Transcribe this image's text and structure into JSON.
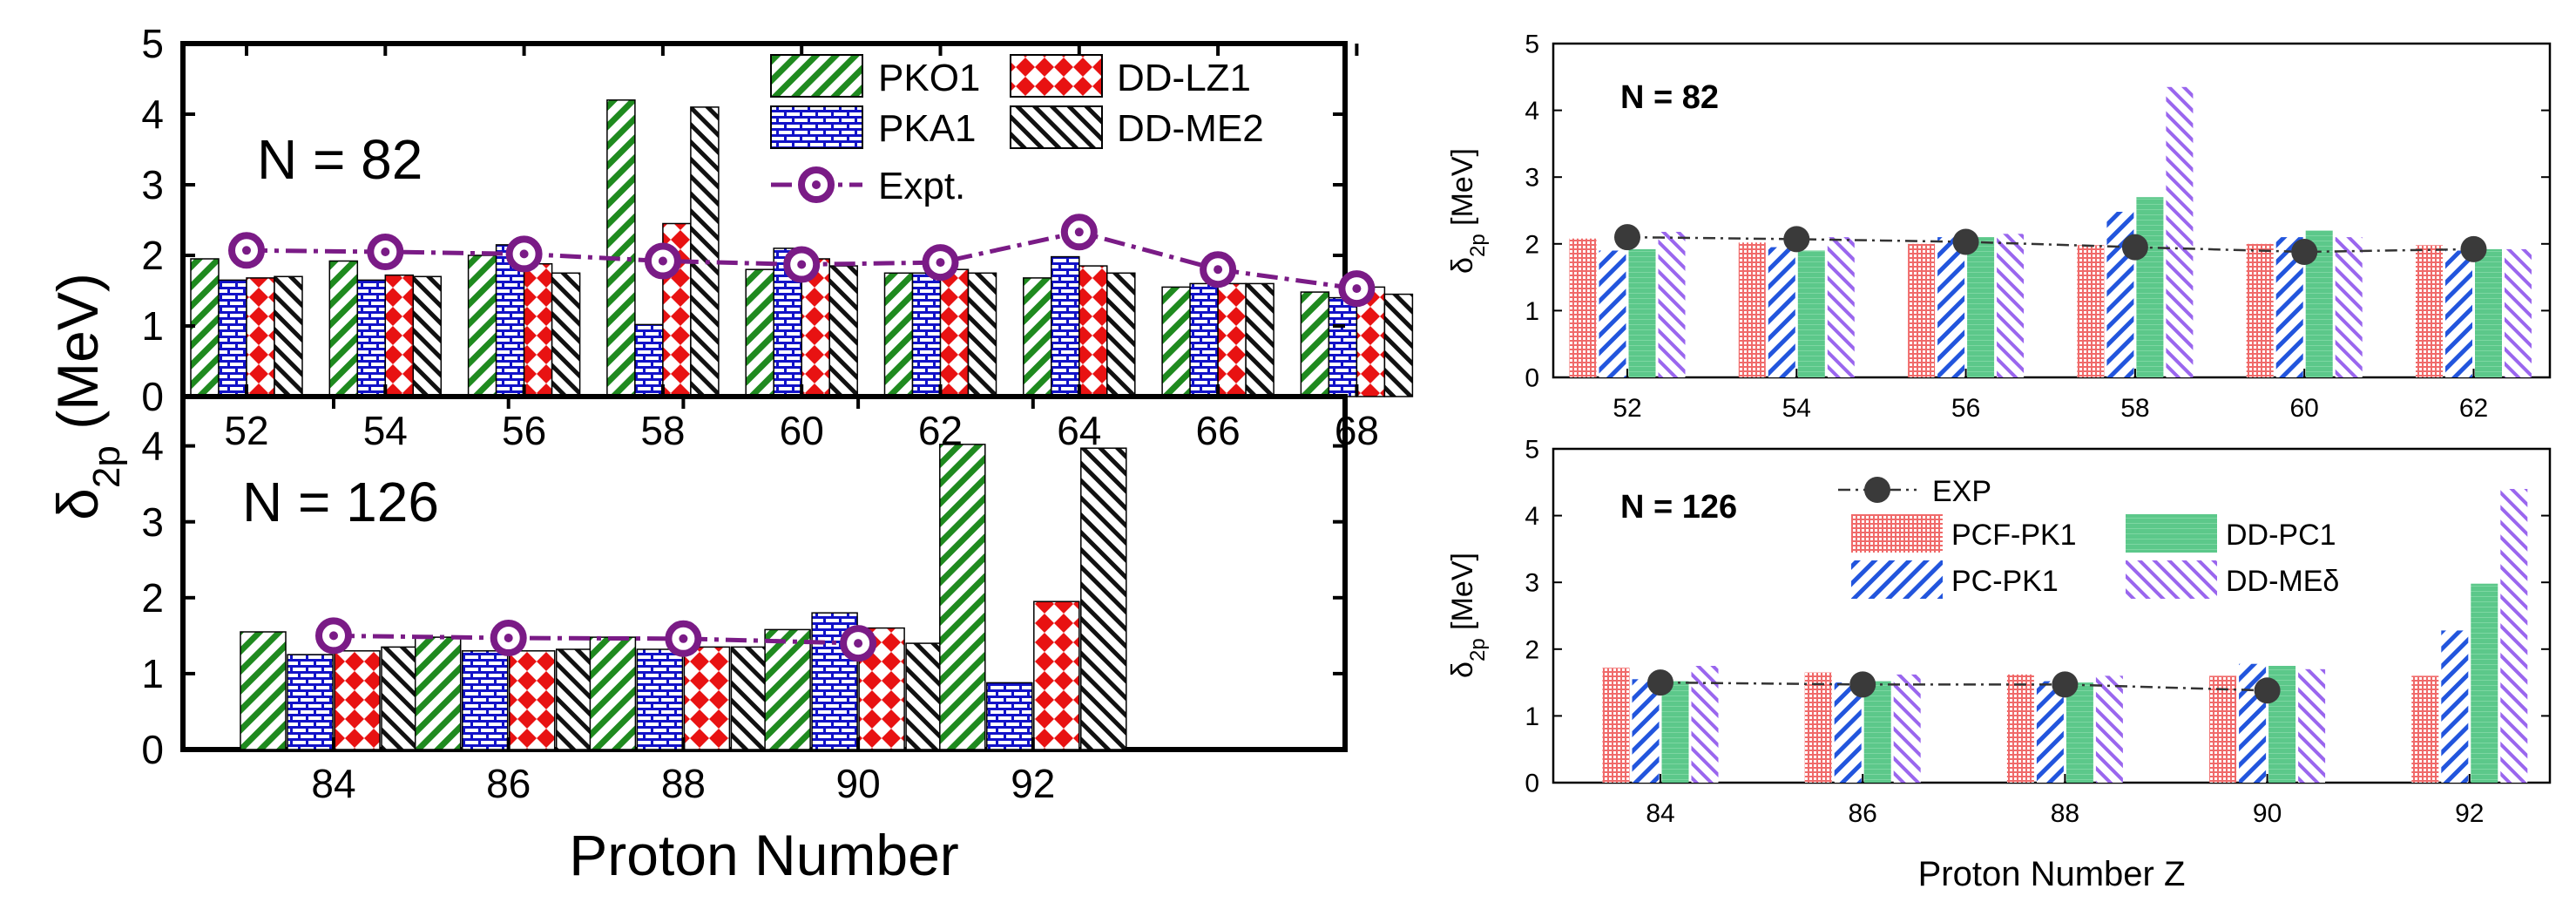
{
  "colors": {
    "pko1": "#1f8a1f",
    "pka1": "#1212c8",
    "ddlz1": "#e81212",
    "ddme2": "#111111",
    "expt": "#7a1b86",
    "pcfpk1": "#f04040",
    "pcpk1": "#2255dd",
    "ddpc1": "#5cc88a",
    "ddmed": "#9a66ee",
    "exp": "#3a3a3a"
  },
  "chart_data": [
    {
      "panel": "left",
      "type": "bar",
      "ylabel_main": "δ",
      "ylabel_sub": "2p",
      "ylabel_unit": " (MeV)",
      "xlabel": "Proton Number",
      "legend": [
        {
          "name": "PKO1",
          "key": "pko1"
        },
        {
          "name": "DD-LZ1",
          "key": "ddlz1"
        },
        {
          "name": "PKA1",
          "key": "pka1"
        },
        {
          "name": "DD-ME2",
          "key": "ddme2"
        },
        {
          "name": "Expt.",
          "key": "expt"
        }
      ],
      "subplots": [
        {
          "label": "N = 82",
          "ylim": [
            0,
            5
          ],
          "yticks": [
            "0",
            "1",
            "2",
            "3",
            "4",
            "5"
          ],
          "categories": [
            "52",
            "54",
            "56",
            "58",
            "60",
            "62",
            "64",
            "66",
            "68"
          ],
          "series": [
            {
              "name": "PKO1",
              "key": "pko1",
              "values": [
                1.95,
                1.92,
                2.0,
                4.2,
                1.8,
                1.75,
                1.68,
                1.55,
                1.48
              ]
            },
            {
              "name": "PKA1",
              "key": "pka1",
              "values": [
                1.65,
                1.65,
                2.15,
                1.02,
                2.1,
                1.75,
                1.98,
                1.6,
                1.4
              ]
            },
            {
              "name": "DD-LZ1",
              "key": "ddlz1",
              "values": [
                1.68,
                1.72,
                1.88,
                2.45,
                1.95,
                1.8,
                1.85,
                1.6,
                1.55
              ]
            },
            {
              "name": "DD-ME2",
              "key": "ddme2",
              "values": [
                1.7,
                1.7,
                1.75,
                4.1,
                1.85,
                1.75,
                1.75,
                1.6,
                1.45
              ]
            }
          ],
          "expt": {
            "name": "Expt.",
            "values": [
              2.07,
              2.05,
              2.02,
              1.92,
              1.87,
              1.9,
              2.33,
              1.8,
              1.53
            ]
          }
        },
        {
          "label": "N = 126",
          "ylim": [
            0,
            4.5
          ],
          "yticks": [
            "0",
            "1",
            "2",
            "3",
            "4"
          ],
          "categories": [
            "84",
            "86",
            "88",
            "90",
            "92"
          ],
          "series": [
            {
              "name": "PKO1",
              "key": "pko1",
              "values": [
                1.55,
                1.48,
                1.48,
                1.58,
                4.02
              ]
            },
            {
              "name": "PKA1",
              "key": "pka1",
              "values": [
                1.25,
                1.3,
                1.32,
                1.8,
                0.88
              ]
            },
            {
              "name": "DD-LZ1",
              "key": "ddlz1",
              "values": [
                1.3,
                1.3,
                1.35,
                1.6,
                1.95
              ]
            },
            {
              "name": "DD-ME2",
              "key": "ddme2",
              "values": [
                1.35,
                1.32,
                1.35,
                1.4,
                3.97
              ]
            }
          ],
          "expt": {
            "name": "Expt.",
            "values": [
              1.5,
              1.47,
              1.46,
              1.4,
              null
            ]
          }
        }
      ]
    },
    {
      "panel": "right",
      "type": "bar",
      "ylabel_main": "δ",
      "ylabel_sub": "2p",
      "ylabel_unit": " [MeV]",
      "xlabel": "Proton Number Z",
      "legend": [
        {
          "name": "EXP",
          "key": "exp"
        },
        {
          "name": "PCF-PK1",
          "key": "pcfpk1"
        },
        {
          "name": "DD-PC1",
          "key": "ddpc1"
        },
        {
          "name": "PC-PK1",
          "key": "pcpk1"
        },
        {
          "name": "DD-MEδ",
          "key": "ddmed"
        }
      ],
      "subplots": [
        {
          "label": "N = 82",
          "ylim": [
            0,
            5
          ],
          "yticks": [
            "0",
            "1",
            "2",
            "3",
            "4",
            "5"
          ],
          "categories": [
            "52",
            "54",
            "56",
            "58",
            "60",
            "62"
          ],
          "series": [
            {
              "name": "PCF-PK1",
              "key": "pcfpk1",
              "values": [
                2.08,
                2.02,
                2.0,
                1.98,
                2.0,
                1.98
              ]
            },
            {
              "name": "PC-PK1",
              "key": "pcpk1",
              "values": [
                1.9,
                1.95,
                2.1,
                2.48,
                2.1,
                1.9
              ]
            },
            {
              "name": "DD-PC1",
              "key": "ddpc1",
              "values": [
                1.92,
                1.9,
                2.1,
                2.7,
                2.2,
                1.92
              ]
            },
            {
              "name": "DD-MEδ",
              "key": "ddmed",
              "values": [
                2.18,
                2.1,
                2.15,
                4.35,
                2.1,
                1.92
              ]
            }
          ],
          "expt": {
            "name": "EXP",
            "values": [
              2.1,
              2.07,
              2.03,
              1.95,
              1.88,
              1.92
            ]
          }
        },
        {
          "label": "N = 126",
          "ylim": [
            0,
            5
          ],
          "yticks": [
            "0",
            "1",
            "2",
            "3",
            "4",
            "5"
          ],
          "categories": [
            "84",
            "86",
            "88",
            "90",
            "92"
          ],
          "series": [
            {
              "name": "PCF-PK1",
              "key": "pcfpk1",
              "values": [
                1.72,
                1.65,
                1.62,
                1.6,
                1.6
              ]
            },
            {
              "name": "PC-PK1",
              "key": "pcpk1",
              "values": [
                1.55,
                1.5,
                1.52,
                1.78,
                2.28
              ]
            },
            {
              "name": "DD-PC1",
              "key": "ddpc1",
              "values": [
                1.52,
                1.52,
                1.5,
                1.75,
                2.98
              ]
            },
            {
              "name": "DD-MEδ",
              "key": "ddmed",
              "values": [
                1.75,
                1.62,
                1.6,
                1.7,
                4.4
              ]
            }
          ],
          "expt": {
            "name": "EXP",
            "values": [
              1.5,
              1.47,
              1.47,
              1.38,
              null
            ]
          }
        }
      ]
    }
  ]
}
